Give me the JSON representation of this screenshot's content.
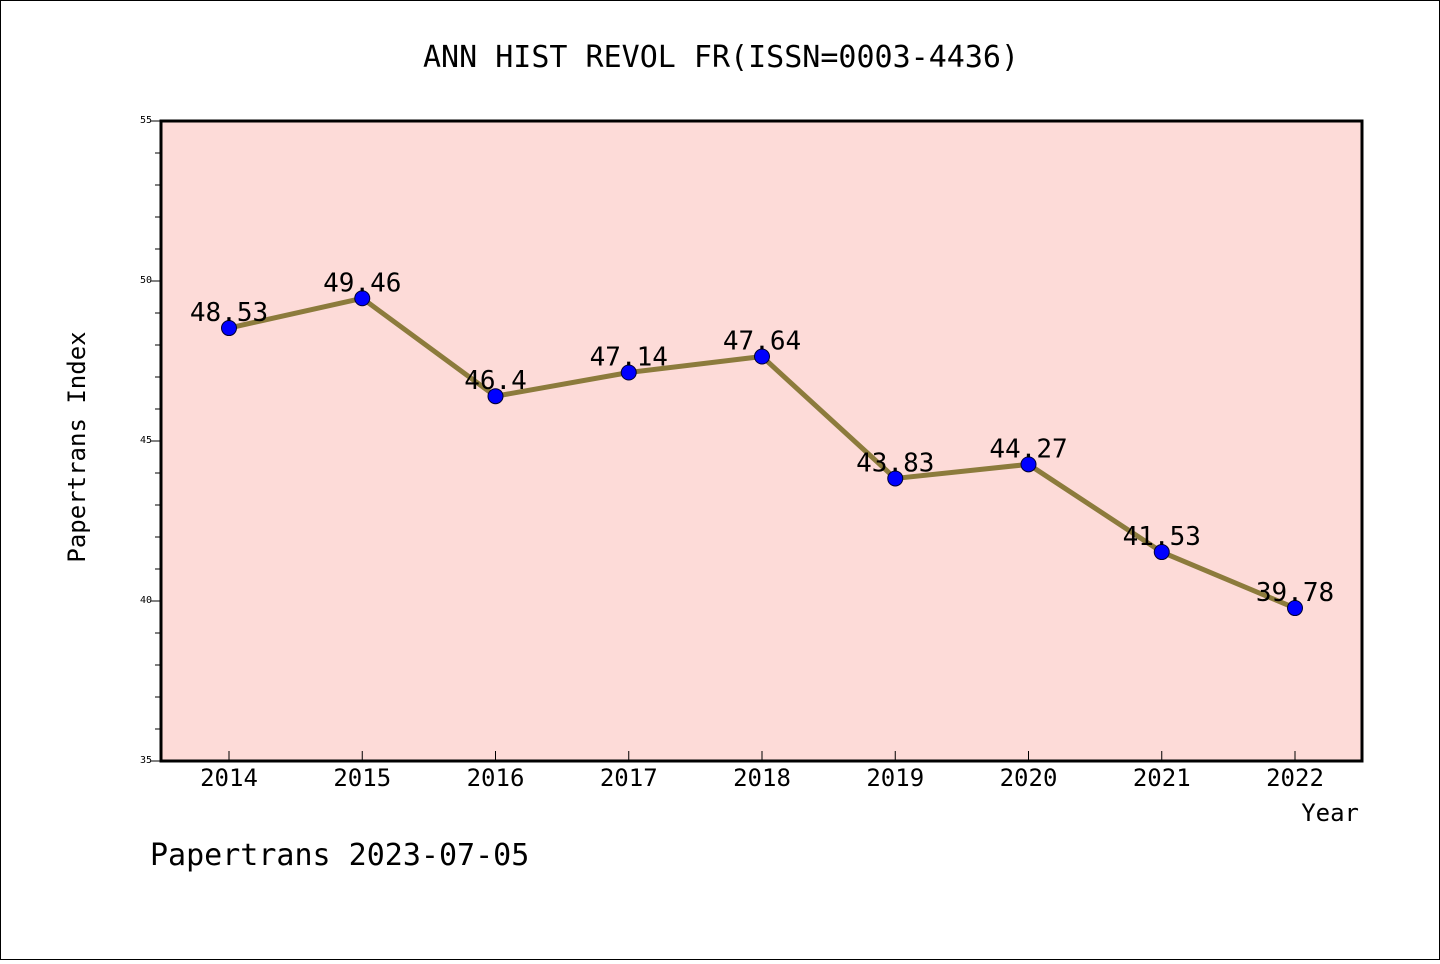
{
  "chart_data": {
    "type": "line",
    "title": "ANN HIST REVOL FR(ISSN=0003-4436)",
    "xlabel": "Year",
    "ylabel": "Papertrans Index",
    "categories": [
      "2014",
      "2015",
      "2016",
      "2017",
      "2018",
      "2019",
      "2020",
      "2021",
      "2022"
    ],
    "values": [
      48.53,
      49.46,
      46.4,
      47.14,
      47.64,
      43.83,
      44.27,
      41.53,
      39.78
    ],
    "data_labels": [
      "48.53",
      "49.46",
      "46.4",
      "47.14",
      "47.64",
      "43.83",
      "44.27",
      "41.53",
      "39.78"
    ],
    "ylim": [
      35,
      55
    ],
    "yticks": [
      "35",
      "40",
      "45",
      "50",
      "55"
    ],
    "grid": false,
    "colors": {
      "plot_background": "#fddbd8",
      "line": "#8c7b3c",
      "marker": "#0000ff"
    }
  },
  "footer": {
    "text": "Papertrans 2023-07-05"
  }
}
